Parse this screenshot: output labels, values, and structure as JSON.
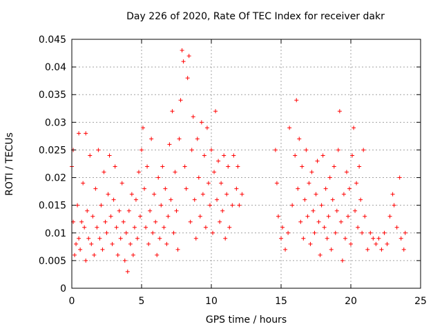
{
  "chart_data": {
    "type": "scatter",
    "title": "Day 226 of 2020, Rate Of TEC Index for receiver dakr",
    "xlabel": "GPS time / hours",
    "ylabel": "ROTI / TECUs",
    "xlim": [
      0,
      25
    ],
    "ylim": [
      0,
      0.045
    ],
    "xticks": [
      "0",
      "5",
      "10",
      "15",
      "20",
      "25"
    ],
    "yticks": [
      "0",
      "0.005",
      "0.01",
      "0.015",
      "0.02",
      "0.025",
      "0.03",
      "0.035",
      "0.04",
      "0.045"
    ],
    "grid": true,
    "marker": "+",
    "color": "#ff0000",
    "series": [
      {
        "name": "ROTI",
        "points": [
          [
            0.0,
            0.022
          ],
          [
            0.1,
            0.025
          ],
          [
            0.1,
            0.012
          ],
          [
            0.2,
            0.006
          ],
          [
            0.3,
            0.008
          ],
          [
            0.4,
            0.015
          ],
          [
            0.5,
            0.009
          ],
          [
            0.5,
            0.028
          ],
          [
            0.6,
            0.007
          ],
          [
            0.7,
            0.012
          ],
          [
            0.8,
            0.019
          ],
          [
            0.9,
            0.011
          ],
          [
            1.0,
            0.005
          ],
          [
            1.0,
            0.028
          ],
          [
            1.1,
            0.014
          ],
          [
            1.2,
            0.009
          ],
          [
            1.3,
            0.024
          ],
          [
            1.4,
            0.008
          ],
          [
            1.5,
            0.013
          ],
          [
            1.6,
            0.006
          ],
          [
            1.7,
            0.018
          ],
          [
            1.8,
            0.011
          ],
          [
            1.9,
            0.025
          ],
          [
            2.0,
            0.009
          ],
          [
            2.1,
            0.015
          ],
          [
            2.2,
            0.007
          ],
          [
            2.3,
            0.021
          ],
          [
            2.4,
            0.012
          ],
          [
            2.5,
            0.01
          ],
          [
            2.6,
            0.017
          ],
          [
            2.7,
            0.024
          ],
          [
            2.8,
            0.013
          ],
          [
            2.9,
            0.008
          ],
          [
            3.0,
            0.016
          ],
          [
            3.1,
            0.022
          ],
          [
            3.2,
            0.011
          ],
          [
            3.3,
            0.006
          ],
          [
            3.4,
            0.014
          ],
          [
            3.5,
            0.009
          ],
          [
            3.6,
            0.019
          ],
          [
            3.7,
            0.012
          ],
          [
            3.8,
            0.005
          ],
          [
            3.9,
            0.01
          ],
          [
            4.0,
            0.003
          ],
          [
            4.1,
            0.014
          ],
          [
            4.2,
            0.008
          ],
          [
            4.3,
            0.017
          ],
          [
            4.4,
            0.006
          ],
          [
            4.5,
            0.011
          ],
          [
            4.6,
            0.016
          ],
          [
            4.7,
            0.009
          ],
          [
            4.8,
            0.021
          ],
          [
            4.9,
            0.013
          ],
          [
            5.0,
            0.025
          ],
          [
            5.1,
            0.029
          ],
          [
            5.2,
            0.018
          ],
          [
            5.3,
            0.011
          ],
          [
            5.4,
            0.022
          ],
          [
            5.5,
            0.008
          ],
          [
            5.6,
            0.014
          ],
          [
            5.7,
            0.027
          ],
          [
            5.8,
            0.01
          ],
          [
            5.9,
            0.017
          ],
          [
            6.0,
            0.012
          ],
          [
            6.1,
            0.006
          ],
          [
            6.2,
            0.02
          ],
          [
            6.3,
            0.009
          ],
          [
            6.4,
            0.015
          ],
          [
            6.5,
            0.022
          ],
          [
            6.6,
            0.011
          ],
          [
            6.7,
            0.018
          ],
          [
            6.8,
            0.008
          ],
          [
            6.9,
            0.013
          ],
          [
            7.0,
            0.026
          ],
          [
            7.1,
            0.016
          ],
          [
            7.2,
            0.032
          ],
          [
            7.3,
            0.01
          ],
          [
            7.4,
            0.021
          ],
          [
            7.5,
            0.014
          ],
          [
            7.6,
            0.007
          ],
          [
            7.7,
            0.027
          ],
          [
            7.8,
            0.034
          ],
          [
            7.9,
            0.043
          ],
          [
            8.0,
            0.041
          ],
          [
            8.1,
            0.022
          ],
          [
            8.2,
            0.018
          ],
          [
            8.3,
            0.038
          ],
          [
            8.4,
            0.042
          ],
          [
            8.5,
            0.012
          ],
          [
            8.6,
            0.025
          ],
          [
            8.7,
            0.031
          ],
          [
            8.8,
            0.016
          ],
          [
            8.9,
            0.009
          ],
          [
            9.0,
            0.027
          ],
          [
            9.1,
            0.02
          ],
          [
            9.2,
            0.013
          ],
          [
            9.3,
            0.03
          ],
          [
            9.4,
            0.017
          ],
          [
            9.5,
            0.024
          ],
          [
            9.6,
            0.011
          ],
          [
            9.7,
            0.029
          ],
          [
            9.8,
            0.019
          ],
          [
            9.9,
            0.015
          ],
          [
            10.0,
            0.025
          ],
          [
            10.1,
            0.01
          ],
          [
            10.2,
            0.021
          ],
          [
            10.3,
            0.032
          ],
          [
            10.4,
            0.016
          ],
          [
            10.5,
            0.023
          ],
          [
            10.6,
            0.012
          ],
          [
            10.7,
            0.019
          ],
          [
            10.8,
            0.014
          ],
          [
            10.9,
            0.024
          ],
          [
            11.0,
            0.009
          ],
          [
            11.1,
            0.017
          ],
          [
            11.2,
            0.022
          ],
          [
            11.3,
            0.011
          ],
          [
            11.5,
            0.015
          ],
          [
            11.6,
            0.024
          ],
          [
            11.8,
            0.018
          ],
          [
            11.9,
            0.022
          ],
          [
            12.0,
            0.015
          ],
          [
            12.2,
            0.017
          ],
          [
            14.6,
            0.025
          ],
          [
            14.7,
            0.019
          ],
          [
            14.8,
            0.013
          ],
          [
            15.0,
            0.009
          ],
          [
            15.1,
            0.011
          ],
          [
            15.3,
            0.007
          ],
          [
            15.5,
            0.01
          ],
          [
            15.6,
            0.029
          ],
          [
            15.8,
            0.015
          ],
          [
            16.0,
            0.024
          ],
          [
            16.1,
            0.034
          ],
          [
            16.2,
            0.018
          ],
          [
            16.3,
            0.027
          ],
          [
            16.4,
            0.012
          ],
          [
            16.5,
            0.022
          ],
          [
            16.6,
            0.009
          ],
          [
            16.7,
            0.016
          ],
          [
            16.8,
            0.025
          ],
          [
            16.9,
            0.013
          ],
          [
            17.0,
            0.019
          ],
          [
            17.1,
            0.008
          ],
          [
            17.2,
            0.021
          ],
          [
            17.3,
            0.014
          ],
          [
            17.4,
            0.01
          ],
          [
            17.5,
            0.017
          ],
          [
            17.6,
            0.023
          ],
          [
            17.7,
            0.012
          ],
          [
            17.8,
            0.006
          ],
          [
            17.9,
            0.015
          ],
          [
            18.0,
            0.024
          ],
          [
            18.1,
            0.011
          ],
          [
            18.2,
            0.018
          ],
          [
            18.3,
            0.009
          ],
          [
            18.4,
            0.013
          ],
          [
            18.5,
            0.02
          ],
          [
            18.6,
            0.007
          ],
          [
            18.7,
            0.016
          ],
          [
            18.8,
            0.022
          ],
          [
            18.9,
            0.01
          ],
          [
            19.0,
            0.014
          ],
          [
            19.1,
            0.025
          ],
          [
            19.2,
            0.032
          ],
          [
            19.3,
            0.012
          ],
          [
            19.4,
            0.005
          ],
          [
            19.5,
            0.017
          ],
          [
            19.6,
            0.009
          ],
          [
            19.7,
            0.021
          ],
          [
            19.8,
            0.013
          ],
          [
            19.9,
            0.018
          ],
          [
            20.0,
            0.008
          ],
          [
            20.1,
            0.024
          ],
          [
            20.2,
            0.029
          ],
          [
            20.3,
            0.014
          ],
          [
            20.4,
            0.019
          ],
          [
            20.5,
            0.011
          ],
          [
            20.6,
            0.022
          ],
          [
            20.7,
            0.016
          ],
          [
            20.8,
            0.01
          ],
          [
            20.9,
            0.025
          ],
          [
            21.0,
            0.013
          ],
          [
            21.2,
            0.007
          ],
          [
            21.4,
            0.01
          ],
          [
            21.6,
            0.009
          ],
          [
            21.8,
            0.008
          ],
          [
            22.0,
            0.009
          ],
          [
            22.2,
            0.007
          ],
          [
            22.4,
            0.01
          ],
          [
            22.6,
            0.008
          ],
          [
            22.8,
            0.013
          ],
          [
            23.0,
            0.017
          ],
          [
            23.1,
            0.015
          ],
          [
            23.3,
            0.011
          ],
          [
            23.5,
            0.02
          ],
          [
            23.6,
            0.009
          ],
          [
            23.8,
            0.007
          ],
          [
            23.9,
            0.01
          ]
        ]
      }
    ]
  }
}
